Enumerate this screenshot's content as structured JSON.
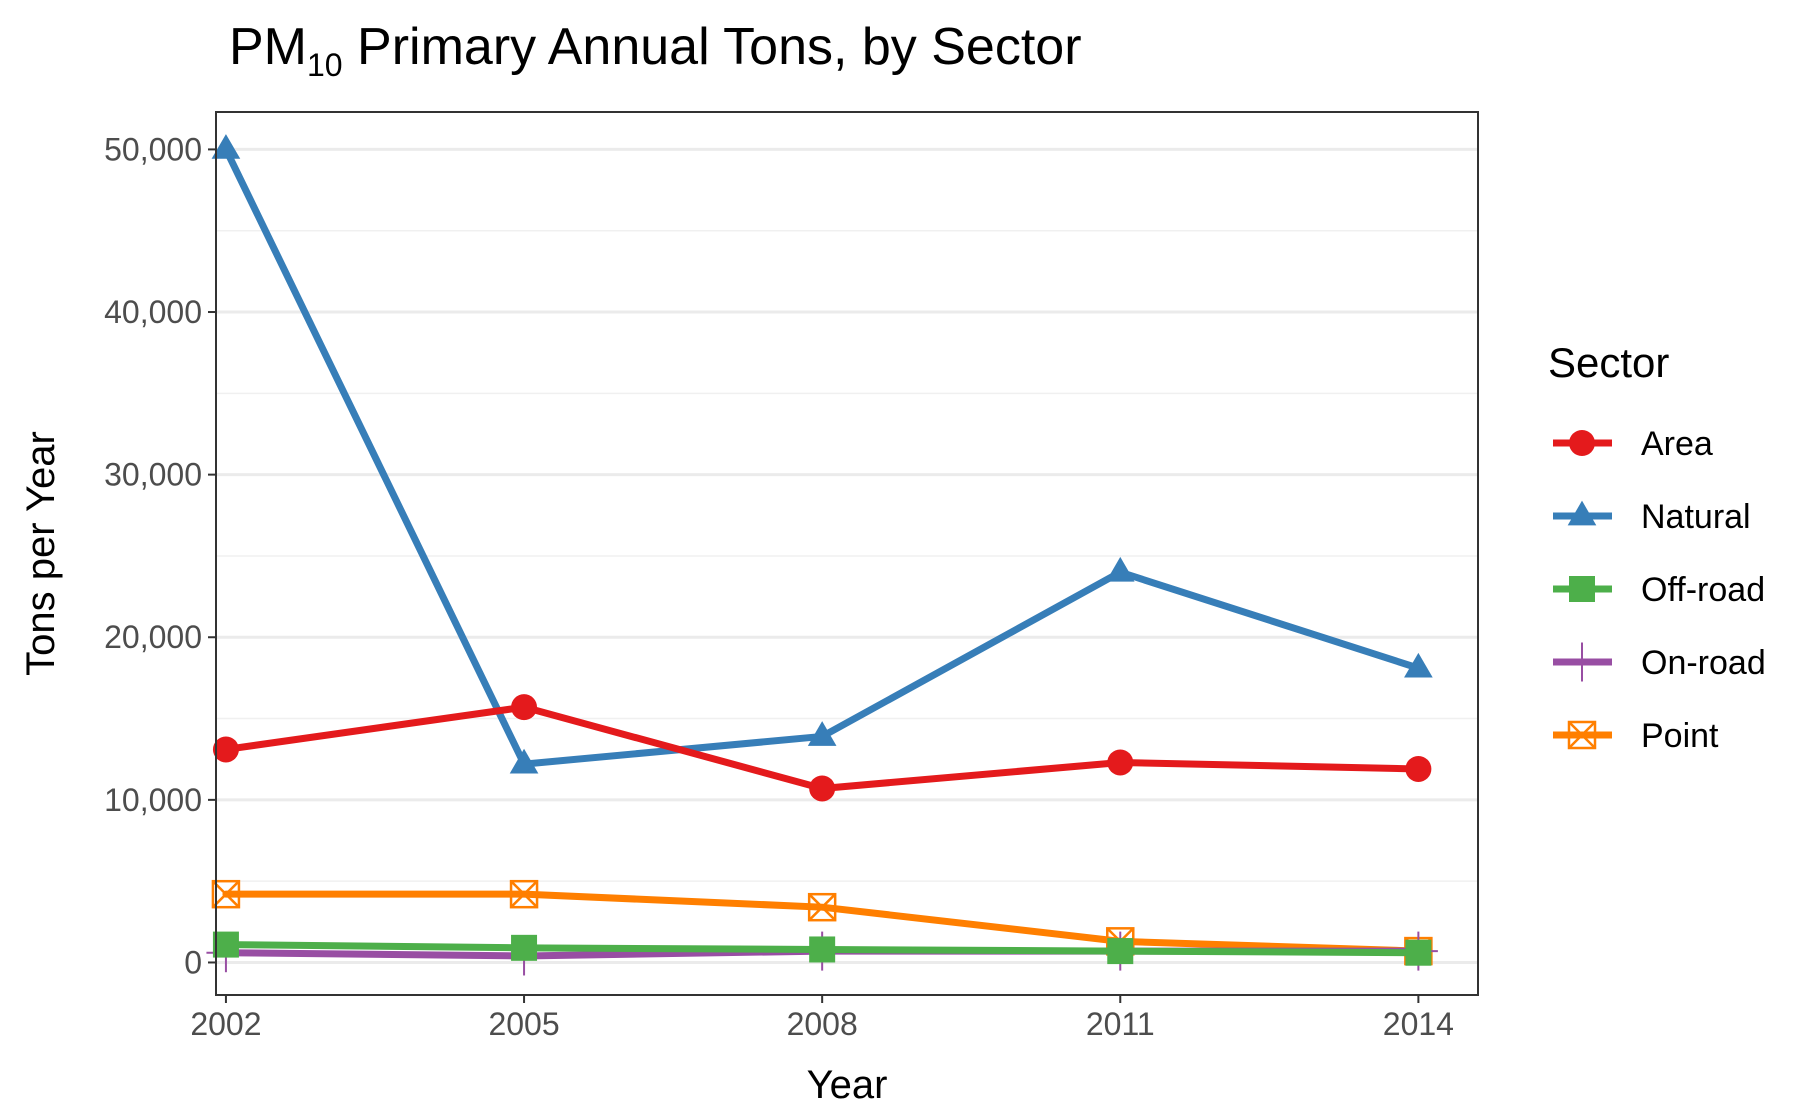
{
  "chart_data": {
    "type": "line",
    "title": {
      "prefix": "PM",
      "subscript": "10",
      "suffix": " Primary Annual Tons, by Sector"
    },
    "xlabel": "Year",
    "ylabel": "Tons per Year",
    "x": [
      2002,
      2005,
      2008,
      2011,
      2014
    ],
    "x_tick_labels": [
      "2002",
      "2005",
      "2008",
      "2011",
      "2014"
    ],
    "y_ticks": [
      0,
      10000,
      20000,
      30000,
      40000,
      50000
    ],
    "y_tick_labels": [
      "0",
      "10,000",
      "20,000",
      "30,000",
      "40,000",
      "50,000"
    ],
    "xlim": [
      2001.9,
      2014.6
    ],
    "ylim": [
      -2000,
      52300
    ],
    "grid": true,
    "legend": {
      "title": "Sector",
      "position": "right"
    },
    "series": [
      {
        "name": "Area",
        "color": "#e41a1c",
        "marker": "circle",
        "values": [
          13100,
          15700,
          10700,
          12300,
          11900
        ]
      },
      {
        "name": "Natural",
        "color": "#377eb8",
        "marker": "triangle",
        "values": [
          50000,
          12200,
          13900,
          24000,
          18100
        ]
      },
      {
        "name": "Off-road",
        "color": "#4daf4a",
        "marker": "square",
        "values": [
          1100,
          900,
          800,
          700,
          600
        ]
      },
      {
        "name": "On-road",
        "color": "#984ea3",
        "marker": "plus",
        "values": [
          600,
          400,
          700,
          700,
          700
        ]
      },
      {
        "name": "Point",
        "color": "#ff7f00",
        "marker": "square-x-open",
        "values": [
          4200,
          4200,
          3400,
          1300,
          700
        ]
      }
    ]
  }
}
